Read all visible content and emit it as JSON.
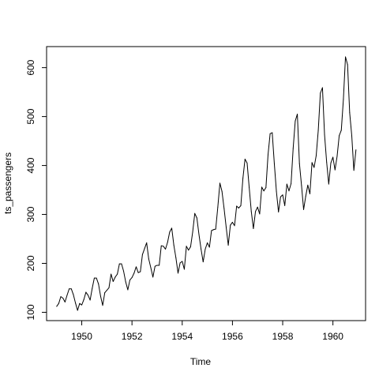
{
  "chart_data": {
    "type": "line",
    "title": "",
    "xlabel": "Time",
    "ylabel": "ts_passengers",
    "xlim": [
      1948.6,
      1961.3
    ],
    "ylim": [
      83,
      643
    ],
    "x_ticks": [
      1950,
      1952,
      1954,
      1956,
      1958,
      1960
    ],
    "x_tick_labels": [
      "1950",
      "1952",
      "1954",
      "1956",
      "1958",
      "1960"
    ],
    "y_ticks": [
      100,
      200,
      300,
      400,
      500,
      600
    ],
    "y_tick_labels": [
      "100",
      "200",
      "300",
      "400",
      "500",
      "600"
    ],
    "grid": false,
    "start_year": 1949,
    "frequency": 12,
    "series": [
      {
        "color": "#000000",
        "values": [
          112,
          118,
          132,
          129,
          121,
          135,
          148,
          148,
          136,
          119,
          104,
          118,
          115,
          126,
          141,
          135,
          125,
          149,
          170,
          170,
          158,
          133,
          114,
          140,
          145,
          150,
          178,
          163,
          172,
          178,
          199,
          199,
          184,
          162,
          146,
          166,
          171,
          180,
          193,
          181,
          183,
          218,
          230,
          242,
          209,
          191,
          172,
          194,
          196,
          196,
          236,
          235,
          229,
          243,
          264,
          272,
          237,
          211,
          180,
          201,
          204,
          188,
          235,
          227,
          234,
          264,
          302,
          293,
          259,
          229,
          203,
          229,
          242,
          233,
          267,
          269,
          270,
          315,
          364,
          347,
          312,
          274,
          237,
          278,
          284,
          277,
          317,
          313,
          318,
          374,
          413,
          405,
          355,
          306,
          271,
          306,
          315,
          301,
          356,
          348,
          355,
          422,
          465,
          467,
          404,
          347,
          305,
          336,
          340,
          318,
          362,
          348,
          363,
          435,
          491,
          505,
          404,
          359,
          310,
          337,
          360,
          342,
          406,
          396,
          420,
          472,
          548,
          559,
          463,
          407,
          362,
          405,
          417,
          391,
          419,
          461,
          472,
          535,
          622,
          606,
          508,
          461,
          390,
          432
        ]
      }
    ]
  }
}
